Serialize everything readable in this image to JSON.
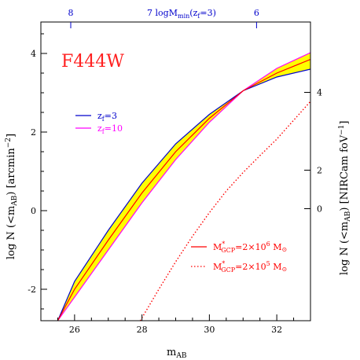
{
  "chart_data": {
    "type": "line",
    "annotation": "F444W",
    "xlabel": "m",
    "xlabel_sub": "AB",
    "xlim": [
      25,
      33
    ],
    "x_ticks": [
      26,
      28,
      30,
      32
    ],
    "ylabel_left": "log N (<m",
    "ylabel_left_sub": "AB",
    "ylabel_left_tail": ") [arcmin",
    "ylabel_left_sup": "−2",
    "ylabel_left_end": "]",
    "ylim_left": [
      -2.8,
      4.8
    ],
    "y_ticks_left": [
      -2,
      0,
      2,
      4
    ],
    "ylabel_right": "log N (<m",
    "ylabel_right_sub": "AB",
    "ylabel_right_tail": ") [NIRCam foV",
    "ylabel_right_sup": "−1",
    "ylabel_right_end": "]",
    "y_ticks_right": [
      {
        "label": "0",
        "left_value": 0.05
      },
      {
        "label": "2",
        "left_value": 1.03
      },
      {
        "label": "4",
        "left_value": 3.01
      }
    ],
    "top_axis_title": "7  logM",
    "top_axis_title_sub": "min",
    "top_axis_title_tail": "(z",
    "top_axis_title_sub2": "f",
    "top_axis_title_end": "=3)",
    "top_ticks": [
      {
        "label": "8",
        "x_value": 25.0
      },
      {
        "label": "6",
        "x_value": 31.4
      }
    ],
    "top_title_x_value": 28.15,
    "band": {
      "name": "",
      "fill": "#ffff00",
      "upper": [
        [
          25.5,
          -2.8
        ],
        [
          26,
          -1.8
        ],
        [
          27,
          -0.5
        ],
        [
          28,
          0.7
        ],
        [
          29,
          1.7
        ],
        [
          30,
          2.45
        ],
        [
          31,
          3.05
        ],
        [
          32,
          3.4
        ],
        [
          33,
          3.6
        ]
      ],
      "lower": [
        [
          25.5,
          -2.8
        ],
        [
          26,
          -2.2
        ],
        [
          27,
          -1.0
        ],
        [
          28,
          0.2
        ],
        [
          29,
          1.3
        ],
        [
          30,
          2.25
        ],
        [
          31,
          3.05
        ],
        [
          32,
          3.62
        ],
        [
          33,
          4.02
        ]
      ]
    },
    "series": [
      {
        "name": "z",
        "name_sub": "f",
        "name_tail": "=3",
        "color": "#0000cc",
        "style": "solid",
        "x": [
          25.5,
          26,
          27,
          28,
          29,
          30,
          31,
          32,
          33
        ],
        "y": [
          -2.8,
          -1.8,
          -0.5,
          0.7,
          1.7,
          2.45,
          3.05,
          3.4,
          3.6
        ]
      },
      {
        "name": "z",
        "name_sub": "f",
        "name_tail": "=10",
        "color": "#ff00ff",
        "style": "solid",
        "x": [
          25.5,
          26,
          27,
          28,
          29,
          30,
          31,
          32,
          33
        ],
        "y": [
          -2.8,
          -2.2,
          -1.0,
          0.2,
          1.3,
          2.25,
          3.05,
          3.62,
          4.02
        ]
      },
      {
        "name": "M",
        "name_sup": "*",
        "name_sub": "GCP",
        "name_tail": "=2×10",
        "name_exp": "6",
        "name_end": " M",
        "name_sun": "⊙",
        "color": "#ff0000",
        "style": "solid",
        "x": [
          25.5,
          26,
          27,
          28,
          29,
          30,
          31,
          32,
          33
        ],
        "y": [
          -2.8,
          -2.0,
          -0.75,
          0.45,
          1.5,
          2.35,
          3.05,
          3.5,
          3.85
        ]
      },
      {
        "name": "M",
        "name_sup": "*",
        "name_sub": "GCP",
        "name_tail": "=2×10",
        "name_exp": "5",
        "name_end": " M",
        "name_sun": "⊙",
        "color": "#ff0000",
        "style": "dotted",
        "x": [
          27.95,
          28.5,
          29,
          29.5,
          30,
          30.5,
          31,
          31.5,
          32,
          32.5,
          33
        ],
        "y": [
          -2.8,
          -2.0,
          -1.3,
          -0.65,
          -0.05,
          0.5,
          0.97,
          1.4,
          1.82,
          2.3,
          2.78
        ]
      }
    ],
    "legend_top": {
      "placement": "middle-left",
      "series": [
        0,
        1
      ]
    },
    "legend_bottom": {
      "placement": "bottom-right",
      "series": [
        2,
        3
      ]
    },
    "grid": false
  }
}
